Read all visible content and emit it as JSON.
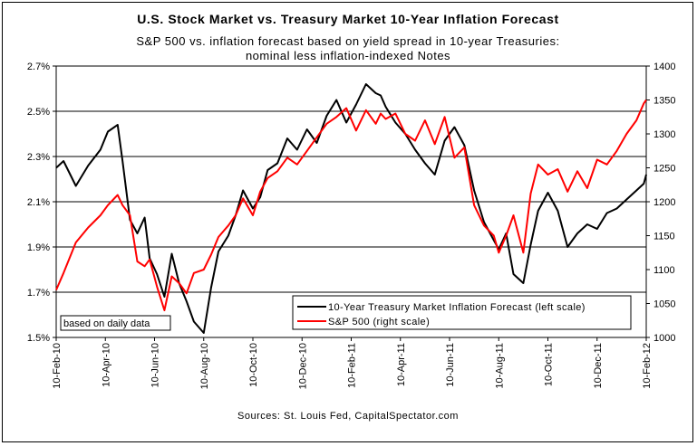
{
  "chart_data": {
    "type": "line",
    "title": "U.S. Stock Market vs. Treasury Market 10-Year Inflation Forecast",
    "subtitle_lines": [
      "S&P 500 vs. inflation forecast based on yield spread in 10-year Treasuries:",
      "nominal less inflation-indexed Notes"
    ],
    "note": "based on daily data",
    "source": "Sources:  St. Louis Fed, CapitalSpectator.com",
    "x_tick_labels": [
      "10-Feb-10",
      "10-Apr-10",
      "10-Jun-10",
      "10-Aug-10",
      "10-Oct-10",
      "10-Dec-10",
      "10-Feb-11",
      "10-Apr-11",
      "10-Jun-11",
      "10-Aug-11",
      "10-Oct-11",
      "10-Dec-11",
      "10-Feb-12"
    ],
    "y_left": {
      "ticks": [
        "1.5%",
        "1.7%",
        "1.9%",
        "2.1%",
        "2.3%",
        "2.5%",
        "2.7%"
      ],
      "ylim": [
        1.5,
        2.7
      ]
    },
    "y_right": {
      "ticks": [
        "1000",
        "1050",
        "1100",
        "1150",
        "1200",
        "1250",
        "1300",
        "1350",
        "1400"
      ],
      "ylim": [
        1000,
        1400
      ]
    },
    "grid": "horizontal",
    "legend_position": "bottom-right",
    "x_index_range": [
      0,
      24
    ],
    "series": [
      {
        "name": "10-Year Treasury Market Inflation Forecast (left scale)",
        "axis": "left",
        "color": "#000000",
        "x": [
          0,
          0.3,
          0.8,
          1.3,
          1.8,
          2.1,
          2.5,
          2.7,
          3,
          3.3,
          3.6,
          3.8,
          4.1,
          4.4,
          4.7,
          5,
          5.3,
          5.6,
          6,
          6.3,
          6.6,
          7,
          7.3,
          7.6,
          8,
          8.3,
          8.6,
          9,
          9.4,
          9.8,
          10.2,
          10.6,
          11,
          11.4,
          11.8,
          12.2,
          12.6,
          13,
          13.2,
          13.4,
          13.8,
          14.2,
          14.6,
          15,
          15.4,
          15.8,
          16.2,
          16.6,
          17,
          17.4,
          17.8,
          18,
          18.3,
          18.6,
          19,
          19.3,
          19.6,
          20,
          20.4,
          20.8,
          21.2,
          21.6,
          22,
          22.4,
          22.8,
          23.2,
          23.6,
          23.9,
          24
        ],
        "y": [
          2.25,
          2.28,
          2.17,
          2.26,
          2.33,
          2.41,
          2.44,
          2.28,
          2.02,
          1.96,
          2.03,
          1.85,
          1.78,
          1.68,
          1.87,
          1.74,
          1.66,
          1.57,
          1.52,
          1.72,
          1.88,
          1.95,
          2.04,
          2.15,
          2.07,
          2.12,
          2.24,
          2.27,
          2.38,
          2.33,
          2.42,
          2.36,
          2.48,
          2.55,
          2.45,
          2.53,
          2.62,
          2.58,
          2.57,
          2.52,
          2.45,
          2.4,
          2.33,
          2.27,
          2.22,
          2.37,
          2.43,
          2.35,
          2.15,
          2.01,
          1.93,
          1.89,
          1.96,
          1.78,
          1.74,
          1.91,
          2.06,
          2.14,
          2.06,
          1.9,
          1.96,
          2.0,
          1.98,
          2.05,
          2.07,
          2.11,
          2.15,
          2.18,
          2.22
        ]
      },
      {
        "name": "S&P 500 (right scale)",
        "axis": "right",
        "color": "#ff0000",
        "x": [
          0,
          0.3,
          0.8,
          1.3,
          1.8,
          2.1,
          2.5,
          2.7,
          3,
          3.3,
          3.6,
          3.8,
          4.1,
          4.4,
          4.7,
          5,
          5.3,
          5.6,
          6,
          6.3,
          6.6,
          7,
          7.3,
          7.6,
          8,
          8.3,
          8.6,
          9,
          9.4,
          9.8,
          10.2,
          10.6,
          11,
          11.4,
          11.8,
          12.2,
          12.6,
          13,
          13.2,
          13.4,
          13.8,
          14.2,
          14.6,
          15,
          15.4,
          15.8,
          16.2,
          16.6,
          17,
          17.4,
          17.8,
          18,
          18.3,
          18.6,
          19,
          19.3,
          19.6,
          20,
          20.4,
          20.8,
          21.2,
          21.6,
          22,
          22.4,
          22.8,
          23.2,
          23.6,
          23.9,
          24
        ],
        "y": [
          1070,
          1095,
          1140,
          1162,
          1180,
          1195,
          1210,
          1195,
          1180,
          1112,
          1105,
          1115,
          1075,
          1040,
          1090,
          1080,
          1065,
          1095,
          1100,
          1122,
          1148,
          1165,
          1180,
          1205,
          1180,
          1215,
          1235,
          1245,
          1265,
          1255,
          1275,
          1295,
          1315,
          1325,
          1338,
          1305,
          1335,
          1315,
          1330,
          1322,
          1330,
          1300,
          1290,
          1320,
          1285,
          1325,
          1265,
          1280,
          1195,
          1165,
          1150,
          1125,
          1150,
          1180,
          1125,
          1212,
          1255,
          1240,
          1248,
          1215,
          1245,
          1220,
          1262,
          1255,
          1275,
          1300,
          1320,
          1345,
          1350
        ]
      }
    ]
  }
}
